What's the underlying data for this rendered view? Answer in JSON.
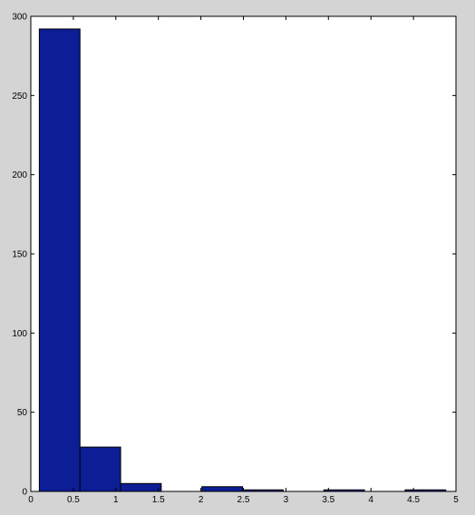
{
  "chart_data": {
    "type": "bar",
    "title": "",
    "xlabel": "",
    "ylabel": "",
    "xlim": [
      0,
      5
    ],
    "ylim": [
      0,
      300
    ],
    "xticks": [
      0,
      0.5,
      1,
      1.5,
      2,
      2.5,
      3,
      3.5,
      4,
      4.5,
      5
    ],
    "xtick_labels": [
      "0",
      "0.5",
      "1",
      "1.5",
      "2",
      "2.5",
      "3",
      "3.5",
      "4",
      "4.5",
      "5"
    ],
    "yticks": [
      0,
      50,
      100,
      150,
      200,
      250,
      300
    ],
    "ytick_labels": [
      "0",
      "50",
      "100",
      "150",
      "200",
      "250",
      "300"
    ],
    "bin_edges": [
      0.1,
      0.578,
      1.056,
      1.534,
      2.012,
      2.49,
      2.968,
      3.446,
      3.924,
      4.402,
      4.88
    ],
    "values": [
      292,
      28,
      5,
      0,
      3,
      1,
      0,
      1,
      0,
      1
    ],
    "grid": false,
    "legend": "none",
    "colors": {
      "bar_fill": "#0c1d96",
      "bar_edge": "#000000",
      "axes_bg": "#ffffff",
      "figure_bg": "#d4d4d4"
    }
  }
}
